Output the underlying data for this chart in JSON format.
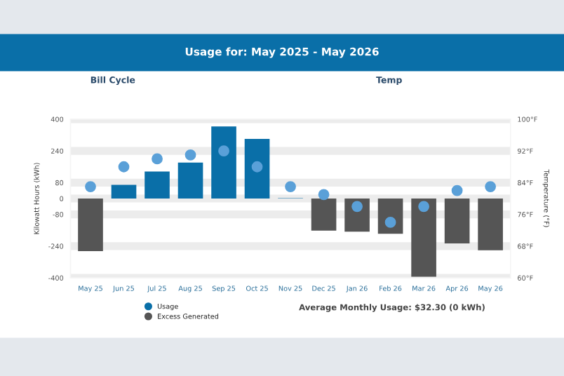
{
  "chart_data": {
    "type": "bar",
    "title": "Usage for: May 2025 - May 2026",
    "categories": [
      "May 25",
      "Jun 25",
      "Jul 25",
      "Aug 25",
      "Sep 25",
      "Oct 25",
      "Nov 25",
      "Dec 25",
      "Jan 26",
      "Feb 26",
      "Mar 26",
      "Apr 26",
      "May 26"
    ],
    "series": [
      {
        "name": "Usage",
        "color": "#0a6fa8",
        "values": [
          null,
          69,
          136,
          181,
          363,
          301,
          2,
          null,
          null,
          null,
          null,
          null,
          null
        ]
      },
      {
        "name": "Excess Generated",
        "color": "#555555",
        "values": [
          -265,
          null,
          null,
          null,
          null,
          null,
          null,
          -162,
          -167,
          -178,
          -394,
          -226,
          -261
        ]
      },
      {
        "type": "scatter",
        "axis": "y2",
        "color": "#5aa0d8",
        "values": [
          83,
          88,
          90,
          91,
          92,
          88,
          83,
          81,
          78,
          74,
          78,
          82,
          83
        ]
      }
    ],
    "ylabel": "Kilowatt Hours (kWh)",
    "y2label": "Temperature (°F)",
    "ylim": [
      -400,
      400
    ],
    "yticks": [
      -400,
      -240,
      -80,
      0,
      80,
      240,
      400
    ],
    "y2lim": [
      60,
      100
    ],
    "y2ticks": [
      {
        "value": 60,
        "label": "60°F"
      },
      {
        "value": 68,
        "label": "68°F"
      },
      {
        "value": 76,
        "label": "76°F"
      },
      {
        "value": 84,
        "label": "84°F"
      },
      {
        "value": 92,
        "label": "92°F"
      },
      {
        "value": 100,
        "label": "100°F"
      }
    ],
    "grid": "y",
    "legend": "bottom left",
    "marker": "circle",
    "annotations": [
      "Bill Cycle",
      "Temp",
      "Average Monthly Usage: $32.30 (0 kWh)"
    ]
  }
}
